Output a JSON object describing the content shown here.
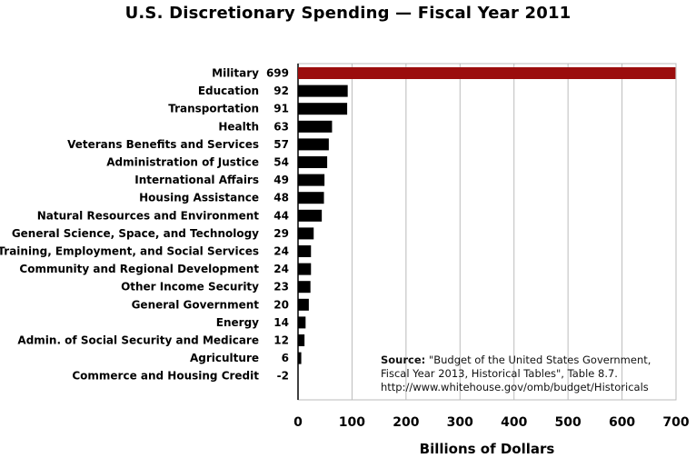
{
  "chart_data": {
    "type": "bar",
    "orientation": "horizontal",
    "title": "U.S. Discretionary Spending — Fiscal Year 2011",
    "xlabel": "Billions of Dollars",
    "ylabel": "",
    "xlim": [
      0,
      700
    ],
    "xticks": [
      "0",
      "100",
      "200",
      "300",
      "400",
      "500",
      "600",
      "700"
    ],
    "grid": "vertical",
    "categories": [
      "Military",
      "Education",
      "Transportation",
      "Health",
      "Veterans Benefits and Services",
      "Administration of Justice",
      "International Affairs",
      "Housing Assistance",
      "Natural Resources and Environment",
      "General Science, Space, and Technology",
      "Training, Employment, and Social Services",
      "Community and Regional Development",
      "Other Income Security",
      "General Government",
      "Energy",
      "Admin. of Social Security and Medicare",
      "Agriculture",
      "Commerce and Housing Credit"
    ],
    "values": [
      699,
      92,
      91,
      63,
      57,
      54,
      49,
      48,
      44,
      29,
      24,
      24,
      23,
      20,
      14,
      12,
      6,
      -2
    ],
    "value_labels": [
      "699",
      "92",
      "91",
      "63",
      "57",
      "54",
      "49",
      "48",
      "44",
      "29",
      "24",
      "24",
      "23",
      "20",
      "14",
      "12",
      "6",
      "-2"
    ],
    "colors": {
      "highlight": "#9b0d0d",
      "bar": "#000000",
      "grid": "#bbbbbb",
      "axis": "#000000"
    },
    "highlight_category": "Military"
  },
  "source": {
    "label": "Source:",
    "line1": "\"Budget of the United States Government,",
    "line2": "Fiscal Year 2013, Historical Tables\", Table 8.7.",
    "line3": "http://www.whitehouse.gov/omb/budget/Historicals"
  }
}
